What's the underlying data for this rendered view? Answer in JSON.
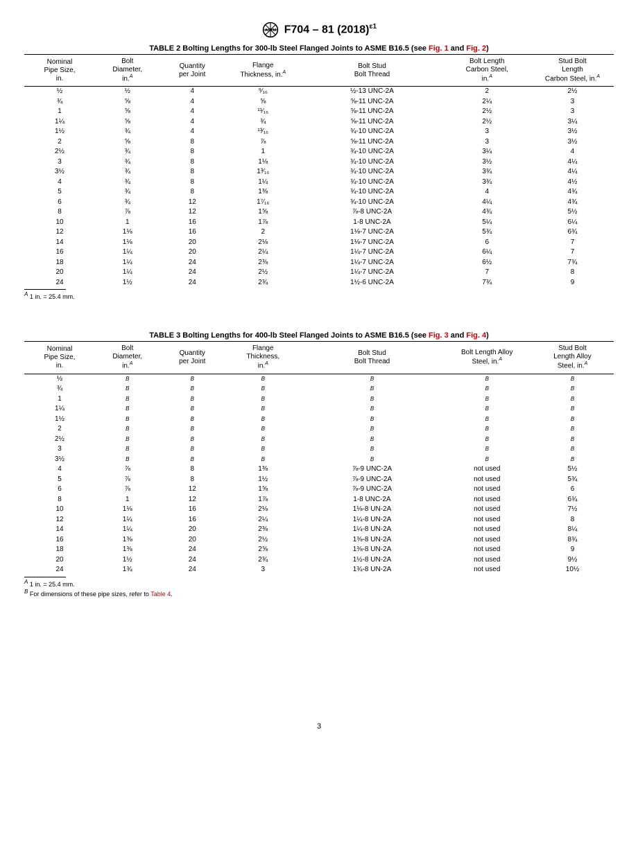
{
  "doc_id": "F704 – 81 (2018)",
  "doc_id_sup": "ɛ1",
  "page_number": "3",
  "table2": {
    "title_prefix": "TABLE 2 Bolting Lengths for 300-lb Steel Flanged Joints to ASME B16.5 (see ",
    "fig1": "Fig. 1",
    "and": " and ",
    "fig2": "Fig. 2",
    "title_suffix": ")",
    "headers": {
      "c1": "Nominal\nPipe Size,\nin.",
      "c2a": "Bolt",
      "c2b": "Diameter,",
      "c2c": "in.",
      "c3": "Quantity\nper Joint",
      "c4a": "Flange",
      "c4b": "Thickness, in.",
      "c5": "Bolt Stud\nBolt Thread",
      "c6a": "Bolt Length",
      "c6b": "Carbon Steel,",
      "c6c": "in.",
      "c7a": "Stud Bolt",
      "c7b": "Length",
      "c7c": "Carbon Steel, in."
    },
    "rows": [
      [
        "½",
        "½",
        "4",
        "⁹⁄₁₆",
        "½-13 UNC-2A",
        "2",
        "2½"
      ],
      [
        "¾",
        "⅝",
        "4",
        "⅝",
        "⅝-11 UNC-2A",
        "2¼",
        "3"
      ],
      [
        "1",
        "⅝",
        "4",
        "¹¹⁄₁₆",
        "⅝-11 UNC-2A",
        "2½",
        "3"
      ],
      [
        "1¼",
        "⅝",
        "4",
        "¾",
        "⅝-11 UNC-2A",
        "2½",
        "3¼"
      ],
      [
        "1½",
        "¾",
        "4",
        "¹³⁄₁₆",
        "¾-10 UNC-2A",
        "3",
        "3½"
      ],
      [
        "2",
        "⅝",
        "8",
        "⅞",
        "⅝-11 UNC-2A",
        "3",
        "3½"
      ],
      [
        "2½",
        "¾",
        "8",
        "1",
        "¾-10 UNC-2A",
        "3¼",
        "4"
      ],
      [
        "3",
        "¾",
        "8",
        "1⅛",
        "¾-10 UNC-2A",
        "3½",
        "4¼"
      ],
      [
        "3½",
        "¾",
        "8",
        "1³⁄₁₆",
        "¾-10 UNC-2A",
        "3¾",
        "4¼"
      ],
      [
        "4",
        "¾",
        "8",
        "1¼",
        "¾-10 UNC-2A",
        "3¾",
        "4½"
      ],
      [
        "5",
        "¾",
        "8",
        "1⅜",
        "¾-10 UNC-2A",
        "4",
        "4¾"
      ],
      [
        "6",
        "¾",
        "12",
        "1⁷⁄₁₆",
        "¾-10 UNC-2A",
        "4¼",
        "4¾"
      ],
      [
        "8",
        "⅞",
        "12",
        "1⅝",
        "⅞-8 UNC-2A",
        "4¾",
        "5½"
      ],
      [
        "10",
        "1",
        "16",
        "1⅞",
        "1-8 UNC-2A",
        "5¼",
        "6¼"
      ],
      [
        "12",
        "1⅛",
        "16",
        "2",
        "1⅛-7 UNC-2A",
        "5¾",
        "6¾"
      ],
      [
        "14",
        "1⅛",
        "20",
        "2⅛",
        "1⅛-7 UNC-2A",
        "6",
        "7"
      ],
      [
        "16",
        "1¼",
        "20",
        "2¼",
        "1¼-7 UNC-2A",
        "6¼",
        "7"
      ],
      [
        "18",
        "1¼",
        "24",
        "2⅜",
        "1¼-7 UNC-2A",
        "6½",
        "7¾"
      ],
      [
        "20",
        "1¼",
        "24",
        "2½",
        "1¼-7 UNC-2A",
        "7",
        "8"
      ],
      [
        "24",
        "1½",
        "24",
        "2¾",
        "1½-6 UNC-2A",
        "7¾",
        "9"
      ]
    ],
    "footnote_a": " 1 in. = 25.4 mm."
  },
  "table3": {
    "title_prefix": "TABLE 3 Bolting Lengths for 400-lb Steel Flanged Joints to ASME B16.5 (see ",
    "fig1": "Fig. 3",
    "and": " and ",
    "fig2": "Fig. 4",
    "title_suffix": ")",
    "headers": {
      "c1": "Nominal\nPipe Size,\nin.",
      "c2a": "Bolt",
      "c2b": "Diameter,",
      "c2c": "in.",
      "c3": "Quantity\nper Joint",
      "c4a": "Flange",
      "c4b": "Thickness,",
      "c4c": "in.",
      "c5": "Bolt Stud\nBolt Thread",
      "c6": "Bolt Length Alloy\nSteel, in.",
      "c7a": "Stud Bolt",
      "c7b": "Length Alloy",
      "c7c": "Steel, in."
    },
    "rows_b": [
      "½",
      "¾",
      "1",
      "1¼",
      "1½",
      "2",
      "2½",
      "3",
      "3½"
    ],
    "rows": [
      [
        "4",
        "⅞",
        "8",
        "1⅜",
        "⅞-9 UNC-2A",
        "not used",
        "5½"
      ],
      [
        "5",
        "⅞",
        "8",
        "1½",
        "⅞-9 UNC-2A",
        "not used",
        "5¾"
      ],
      [
        "6",
        "⅞",
        "12",
        "1⅝",
        "⅞-9 UNC-2A",
        "not used",
        "6"
      ],
      [
        "8",
        "1",
        "12",
        "1⅞",
        "1-8 UNC-2A",
        "not used",
        "6¾"
      ],
      [
        "10",
        "1⅛",
        "16",
        "2⅛",
        "1⅛-8 UN-2A",
        "not used",
        "7½"
      ],
      [
        "12",
        "1¼",
        "16",
        "2¼",
        "1¼-8 UN-2A",
        "not used",
        "8"
      ],
      [
        "14",
        "1¼",
        "20",
        "2⅜",
        "1¼-8 UN-2A",
        "not used",
        "8¼"
      ],
      [
        "16",
        "1⅜",
        "20",
        "2½",
        "1⅜-8 UN-2A",
        "not used",
        "8¾"
      ],
      [
        "18",
        "1⅜",
        "24",
        "2⅝",
        "1⅜-8 UN-2A",
        "not used",
        "9"
      ],
      [
        "20",
        "1½",
        "24",
        "2¾",
        "1½-8 UN-2A",
        "not used",
        "9½"
      ],
      [
        "24",
        "1¾",
        "24",
        "3",
        "1¾-8 UN-2A",
        "not used",
        "10½"
      ]
    ],
    "footnote_a": " 1 in. = 25.4 mm.",
    "footnote_b_prefix": " For dimensions of these pipe sizes, refer to ",
    "footnote_b_link": "Table 4",
    "footnote_b_suffix": "."
  }
}
